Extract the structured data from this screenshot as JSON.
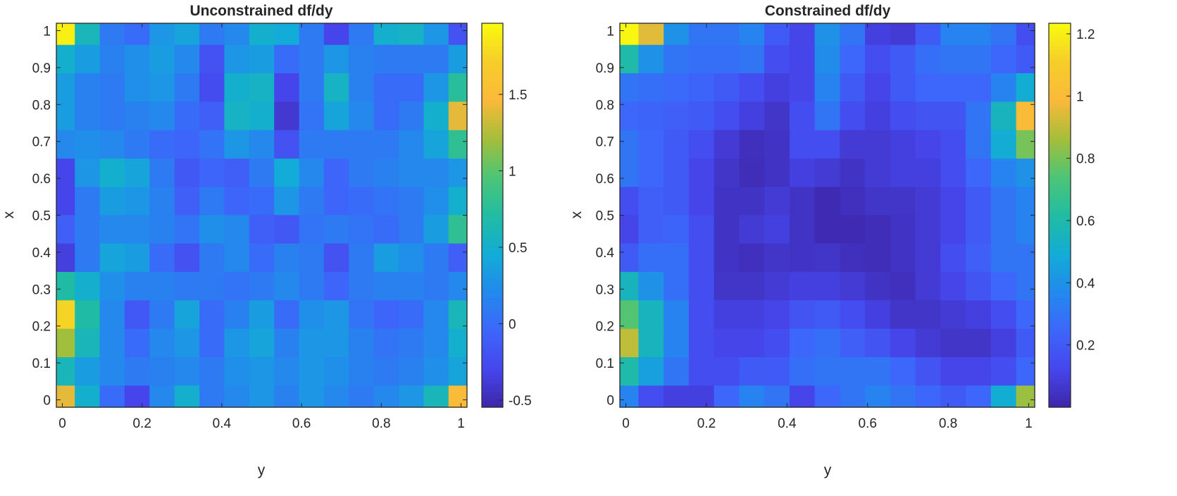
{
  "colormap": [
    "#3e26a8",
    "#4646ec",
    "#3d66fa",
    "#2389ed",
    "#12acd6",
    "#21bca2",
    "#4cc576",
    "#a5be3a",
    "#fbb93a",
    "#f6cd2a",
    "#f9fb0e"
  ],
  "chart_data": [
    {
      "type": "heatmap",
      "title": "Unconstrained df/dy",
      "xlabel": "y",
      "ylabel": "x",
      "xlim": [
        -0.015,
        1.015
      ],
      "ylim": [
        -0.02,
        1.02
      ],
      "xticks": [
        "0",
        "0.2",
        "0.4",
        "0.6",
        "0.8",
        "1"
      ],
      "xtick_values": [
        0,
        0.2,
        0.4,
        0.6,
        0.8,
        1
      ],
      "yticks": [
        "0",
        "0.1",
        "0.2",
        "0.3",
        "0.4",
        "0.5",
        "0.6",
        "0.7",
        "0.8",
        "0.9",
        "1"
      ],
      "ytick_values": [
        0,
        0.1,
        0.2,
        0.3,
        0.4,
        0.5,
        0.6,
        0.7,
        0.8,
        0.9,
        1
      ],
      "colorbar": {
        "range": [
          -0.546,
          1.965
        ],
        "ticks": [
          "-0.5",
          "0",
          "0.5",
          "1",
          "1.5"
        ],
        "tick_values": [
          -0.5,
          0,
          0.5,
          1,
          1.5
        ]
      },
      "y_values": [
        0,
        0.0625,
        0.125,
        0.1875,
        0.25,
        0.3125,
        0.375,
        0.4375,
        0.5,
        0.5625,
        0.625,
        0.6875,
        0.75,
        0.8125,
        0.875,
        0.9375,
        1
      ],
      "x_values": [
        1,
        0.923,
        0.846,
        0.769,
        0.692,
        0.615,
        0.538,
        0.462,
        0.385,
        0.308,
        0.231,
        0.154,
        0.077,
        0
      ],
      "z": [
        [
          1.9,
          0.6,
          0.1,
          0.0,
          0.3,
          0.4,
          0.1,
          0.2,
          0.5,
          0.45,
          0.1,
          -0.3,
          0.1,
          0.5,
          0.55,
          0.3,
          -0.2
        ],
        [
          0.5,
          0.35,
          0.15,
          0.25,
          0.35,
          0.2,
          -0.2,
          0.3,
          0.35,
          0.0,
          0.1,
          0.3,
          0.15,
          0.1,
          0.1,
          0.1,
          0.35
        ],
        [
          0.35,
          0.15,
          0.1,
          0.25,
          0.3,
          0.1,
          -0.25,
          0.5,
          0.55,
          -0.3,
          0.1,
          0.55,
          0.15,
          0.0,
          0.0,
          0.3,
          0.75
        ],
        [
          0.35,
          0.15,
          0.1,
          0.15,
          0.2,
          0.0,
          -0.1,
          0.55,
          0.5,
          -0.4,
          0.05,
          0.4,
          0.2,
          0.0,
          0.1,
          0.5,
          1.4
        ],
        [
          0.2,
          0.25,
          0.2,
          0.1,
          0.0,
          -0.05,
          0.05,
          0.3,
          0.2,
          -0.2,
          0.1,
          0.1,
          0.1,
          0.1,
          0.2,
          0.4,
          0.8
        ],
        [
          -0.3,
          0.3,
          0.5,
          0.4,
          0.1,
          -0.15,
          -0.05,
          -0.1,
          0.1,
          0.45,
          0.2,
          -0.05,
          0.1,
          0.15,
          0.2,
          0.2,
          0.3
        ],
        [
          -0.3,
          0.1,
          0.35,
          0.3,
          0.15,
          -0.1,
          0.1,
          -0.05,
          0.0,
          0.3,
          0.1,
          -0.05,
          0.0,
          0.05,
          0.1,
          0.25,
          0.5
        ],
        [
          -0.1,
          0.1,
          0.2,
          0.2,
          0.15,
          0.05,
          0.25,
          0.2,
          -0.1,
          -0.15,
          0.05,
          0.1,
          0.05,
          0.0,
          0.1,
          0.35,
          0.8
        ],
        [
          -0.35,
          0.1,
          0.4,
          0.35,
          0.0,
          -0.2,
          0.1,
          0.2,
          0.0,
          0.15,
          0.1,
          -0.2,
          0.1,
          0.35,
          0.25,
          0.1,
          -0.1
        ],
        [
          0.7,
          0.5,
          0.25,
          0.15,
          0.15,
          0.1,
          0.1,
          0.05,
          0.1,
          0.2,
          0.1,
          -0.05,
          0.1,
          0.15,
          0.15,
          0.1,
          0.2
        ],
        [
          1.75,
          0.7,
          0.2,
          -0.15,
          0.1,
          0.4,
          0.0,
          0.15,
          0.35,
          0.0,
          0.25,
          0.3,
          0.05,
          -0.05,
          0.0,
          0.2,
          0.6
        ],
        [
          1.2,
          0.6,
          0.2,
          0.0,
          0.2,
          0.3,
          0.0,
          0.3,
          0.4,
          0.15,
          0.3,
          0.3,
          0.15,
          0.05,
          0.1,
          0.2,
          0.5
        ],
        [
          0.6,
          0.35,
          0.2,
          0.1,
          0.15,
          0.2,
          0.1,
          0.25,
          0.3,
          0.2,
          0.3,
          0.25,
          0.15,
          0.1,
          0.15,
          0.25,
          0.4
        ],
        [
          1.4,
          0.5,
          0.0,
          -0.3,
          0.2,
          0.5,
          0.1,
          0.2,
          0.3,
          0.15,
          0.3,
          0.2,
          0.1,
          0.2,
          0.3,
          0.6,
          1.5
        ]
      ]
    },
    {
      "type": "heatmap",
      "title": "Constrained df/dy",
      "xlabel": "y",
      "ylabel": "x",
      "xlim": [
        -0.015,
        1.015
      ],
      "ylim": [
        -0.02,
        1.02
      ],
      "xticks": [
        "0",
        "0.2",
        "0.4",
        "0.6",
        "0.8",
        "1"
      ],
      "xtick_values": [
        0,
        0.2,
        0.4,
        0.6,
        0.8,
        1
      ],
      "yticks": [
        "0",
        "0.1",
        "0.2",
        "0.3",
        "0.4",
        "0.5",
        "0.6",
        "0.7",
        "0.8",
        "0.9",
        "1"
      ],
      "ytick_values": [
        0,
        0.1,
        0.2,
        0.3,
        0.4,
        0.5,
        0.6,
        0.7,
        0.8,
        0.9,
        1
      ],
      "colorbar": {
        "range": [
          0.0,
          1.234
        ],
        "ticks": [
          "0.2",
          "0.4",
          "0.6",
          "0.8",
          "1",
          "1.2"
        ],
        "tick_values": [
          0.2,
          0.4,
          0.6,
          0.8,
          1,
          1.2
        ]
      },
      "y_values": [
        0,
        0.0625,
        0.125,
        0.1875,
        0.25,
        0.3125,
        0.375,
        0.4375,
        0.5,
        0.5625,
        0.625,
        0.6875,
        0.75,
        0.8125,
        0.875,
        0.9375,
        1
      ],
      "x_values": [
        1,
        0.923,
        0.846,
        0.769,
        0.692,
        0.615,
        0.538,
        0.462,
        0.385,
        0.308,
        0.231,
        0.154,
        0.077,
        0
      ],
      "z": [
        [
          1.22,
          0.95,
          0.4,
          0.3,
          0.3,
          0.35,
          0.2,
          0.12,
          0.4,
          0.3,
          0.1,
          0.08,
          0.2,
          0.35,
          0.35,
          0.3,
          0.15
        ],
        [
          0.6,
          0.4,
          0.3,
          0.28,
          0.28,
          0.3,
          0.15,
          0.12,
          0.38,
          0.25,
          0.15,
          0.2,
          0.28,
          0.3,
          0.3,
          0.25,
          0.2
        ],
        [
          0.3,
          0.28,
          0.26,
          0.24,
          0.2,
          0.15,
          0.1,
          0.12,
          0.35,
          0.2,
          0.12,
          0.2,
          0.25,
          0.25,
          0.25,
          0.35,
          0.5
        ],
        [
          0.25,
          0.24,
          0.22,
          0.2,
          0.15,
          0.1,
          0.06,
          0.15,
          0.3,
          0.15,
          0.1,
          0.15,
          0.18,
          0.18,
          0.3,
          0.55,
          1.0
        ],
        [
          0.3,
          0.25,
          0.2,
          0.15,
          0.08,
          0.04,
          0.05,
          0.15,
          0.15,
          0.08,
          0.08,
          0.1,
          0.12,
          0.15,
          0.3,
          0.5,
          0.8
        ],
        [
          0.3,
          0.25,
          0.2,
          0.12,
          0.06,
          0.03,
          0.05,
          0.1,
          0.08,
          0.05,
          0.08,
          0.1,
          0.1,
          0.15,
          0.25,
          0.35,
          0.4
        ],
        [
          0.15,
          0.22,
          0.2,
          0.12,
          0.05,
          0.05,
          0.08,
          0.05,
          0.02,
          0.04,
          0.06,
          0.06,
          0.08,
          0.12,
          0.2,
          0.3,
          0.35
        ],
        [
          0.12,
          0.22,
          0.24,
          0.15,
          0.05,
          0.08,
          0.1,
          0.05,
          0.02,
          0.02,
          0.03,
          0.05,
          0.08,
          0.12,
          0.2,
          0.3,
          0.35
        ],
        [
          0.2,
          0.28,
          0.28,
          0.15,
          0.05,
          0.04,
          0.06,
          0.05,
          0.06,
          0.04,
          0.03,
          0.05,
          0.08,
          0.15,
          0.22,
          0.3,
          0.3
        ],
        [
          0.55,
          0.4,
          0.28,
          0.15,
          0.06,
          0.06,
          0.08,
          0.1,
          0.1,
          0.08,
          0.05,
          0.04,
          0.08,
          0.12,
          0.18,
          0.25,
          0.3
        ],
        [
          0.75,
          0.55,
          0.35,
          0.15,
          0.1,
          0.1,
          0.12,
          0.18,
          0.2,
          0.15,
          0.1,
          0.06,
          0.06,
          0.08,
          0.1,
          0.15,
          0.25
        ],
        [
          0.9,
          0.55,
          0.35,
          0.15,
          0.12,
          0.12,
          0.15,
          0.25,
          0.28,
          0.22,
          0.18,
          0.12,
          0.08,
          0.06,
          0.06,
          0.1,
          0.2
        ],
        [
          0.6,
          0.45,
          0.3,
          0.15,
          0.15,
          0.2,
          0.2,
          0.28,
          0.3,
          0.3,
          0.3,
          0.25,
          0.18,
          0.12,
          0.12,
          0.15,
          0.25
        ],
        [
          0.35,
          0.15,
          0.1,
          0.1,
          0.25,
          0.35,
          0.3,
          0.12,
          0.25,
          0.3,
          0.35,
          0.3,
          0.25,
          0.2,
          0.25,
          0.5,
          0.85
        ]
      ]
    }
  ]
}
